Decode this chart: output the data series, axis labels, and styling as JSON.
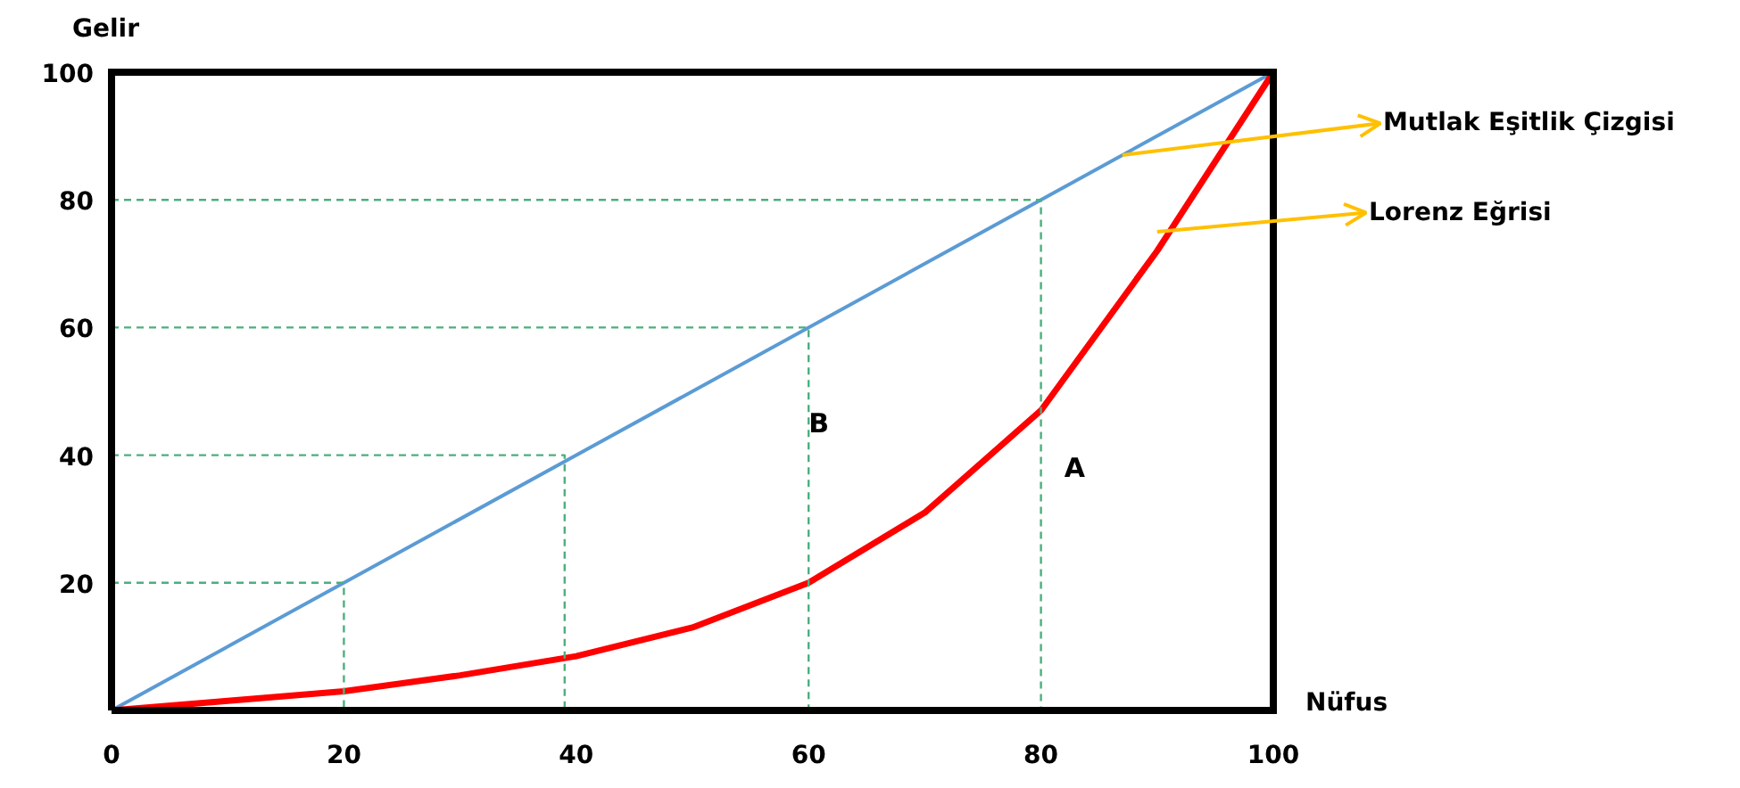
{
  "chart_data": {
    "type": "line",
    "xlabel": "Nüfus",
    "ylabel": "Gelir",
    "xlim": [
      0,
      100
    ],
    "ylim": [
      0,
      100
    ],
    "xticks": [
      0,
      20,
      40,
      60,
      80,
      100
    ],
    "yticks": [
      20,
      40,
      60,
      80,
      100
    ],
    "grid": false,
    "marker": "none",
    "series": [
      {
        "color": "#5b9bd5",
        "x": [
          0,
          100
        ],
        "values": [
          0,
          100
        ]
      },
      {
        "color": "#ff0000",
        "x": [
          0,
          10,
          20,
          30,
          40,
          50,
          60,
          70,
          80,
          90,
          100
        ],
        "values": [
          0,
          1.5,
          3,
          5.5,
          8.5,
          13,
          20,
          31,
          47,
          72,
          100
        ]
      },
      {
        "color": "#4caf7d",
        "line_style": "dashed",
        "x": [
          0,
          20,
          20
        ],
        "values": [
          20,
          20,
          0
        ]
      },
      {
        "color": "#4caf7d",
        "line_style": "dashed",
        "x": [
          0,
          39,
          39
        ],
        "values": [
          40,
          40,
          0
        ]
      },
      {
        "color": "#4caf7d",
        "line_style": "dashed",
        "x": [
          0,
          60,
          60
        ],
        "values": [
          60,
          60,
          0
        ]
      },
      {
        "color": "#4caf7d",
        "line_style": "dashed",
        "x": [
          0,
          80,
          80
        ],
        "values": [
          80,
          80,
          0
        ]
      }
    ],
    "annotations": [
      {
        "text": "Mutlak Eşitlik Çizgisi",
        "x": 87,
        "y": 87
      },
      {
        "text": "Lorenz Eğrisi",
        "x": 90,
        "y": 75
      },
      "B",
      "A"
    ]
  }
}
